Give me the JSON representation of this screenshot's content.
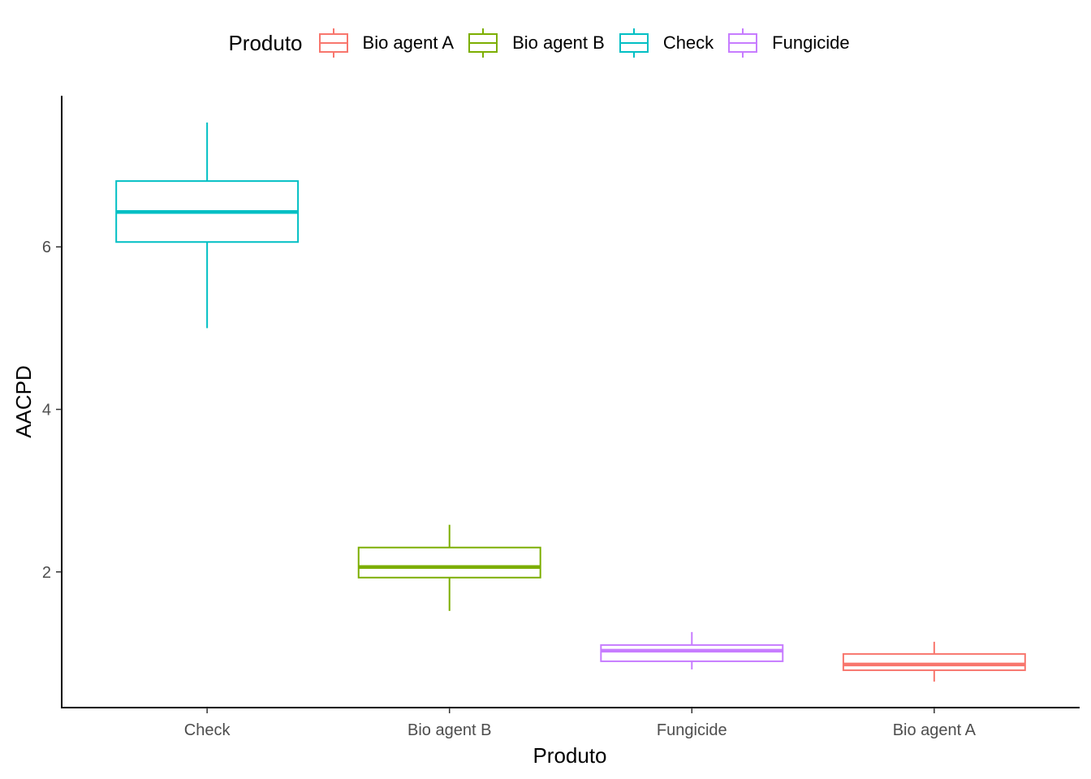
{
  "legend": {
    "title": "Produto",
    "items": [
      {
        "label": "Bio agent A",
        "color": "#F8766D"
      },
      {
        "label": "Bio agent B",
        "color": "#7CAE00"
      },
      {
        "label": "Check",
        "color": "#00BFC4"
      },
      {
        "label": "Fungicide",
        "color": "#C77CFF"
      }
    ]
  },
  "chart_data": {
    "type": "boxplot",
    "xlabel": "Produto",
    "ylabel": "AACPD",
    "categories": [
      "Check",
      "Bio agent B",
      "Fungicide",
      "Bio agent A"
    ],
    "yticks": [
      2,
      4,
      6
    ],
    "ylim": [
      0.33,
      7.86
    ],
    "grid": false,
    "legend_position": "top",
    "boxes": [
      {
        "category": "Check",
        "color": "#00BFC4",
        "min": 5.0,
        "q1": 6.06,
        "median": 6.43,
        "q3": 6.81,
        "max": 7.53
      },
      {
        "category": "Bio agent B",
        "color": "#7CAE00",
        "min": 1.52,
        "q1": 1.93,
        "median": 2.06,
        "q3": 2.3,
        "max": 2.58
      },
      {
        "category": "Fungicide",
        "color": "#C77CFF",
        "min": 0.8,
        "q1": 0.9,
        "median": 1.03,
        "q3": 1.1,
        "max": 1.26
      },
      {
        "category": "Bio agent A",
        "color": "#F8766D",
        "min": 0.65,
        "q1": 0.79,
        "median": 0.86,
        "q3": 0.99,
        "max": 1.14
      }
    ]
  }
}
